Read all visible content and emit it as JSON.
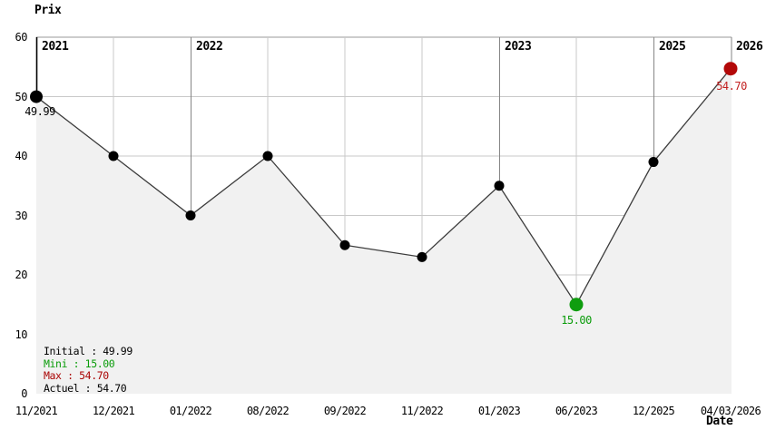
{
  "title": "Prix",
  "x_axis_title": "Date",
  "colors": {
    "text": "#000000",
    "grid": "#c9c9c9",
    "border": "#9a9a9a",
    "year_line": "#868686",
    "year_line_first": "#000000",
    "fill": "#f1f1f1",
    "line": "#3c3c3c",
    "point": "#000000",
    "min": "#0f9d0f",
    "max": "#b30808",
    "min_label": "#0a9c0a",
    "max_label": "#c22020",
    "legend_mini": "#0a9c0a",
    "legend_max": "#aa0404"
  },
  "chart_data": {
    "type": "line",
    "title": "Prix",
    "xlabel": "Date",
    "ylabel": "Prix",
    "x": [
      "11/2021",
      "12/2021",
      "01/2022",
      "08/2022",
      "09/2022",
      "11/2022",
      "01/2023",
      "06/2023",
      "12/2025",
      "04/03/2026"
    ],
    "values": [
      49.99,
      40,
      30,
      40,
      25,
      23,
      35,
      15,
      39,
      54.7
    ],
    "ylim": [
      0,
      60
    ],
    "yticks": [
      60,
      50,
      40,
      30,
      20,
      10,
      0
    ],
    "grid": true,
    "area_fill": true,
    "legend_position": "bottom-left",
    "years": [
      {
        "label": "2021",
        "index": 0
      },
      {
        "label": "2022",
        "index": 2
      },
      {
        "label": "2023",
        "index": 6
      },
      {
        "label": "2025",
        "index": 8
      },
      {
        "label": "2026",
        "index": 9
      }
    ],
    "annotations": [
      {
        "index": 0,
        "text": "49.99",
        "role": "initial"
      },
      {
        "index": 7,
        "text": "15.00",
        "role": "min"
      },
      {
        "index": 9,
        "text": "54.70",
        "role": "max"
      }
    ]
  },
  "legend": {
    "lines": [
      {
        "text": "Initial : 49.99",
        "role": "initial"
      },
      {
        "text": "Mini : 15.00",
        "role": "min"
      },
      {
        "text": "Max : 54.70",
        "role": "max"
      },
      {
        "text": "Actuel : 54.70",
        "role": "current"
      }
    ]
  }
}
